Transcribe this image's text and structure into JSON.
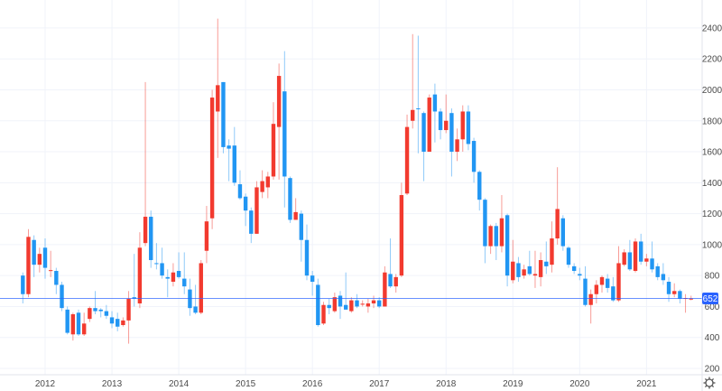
{
  "chart_data": {
    "type": "candlestick",
    "title": "",
    "xlabel": "",
    "ylabel": "",
    "interval": "monthly",
    "ylim": [
      150,
      2520
    ],
    "y_ticks": [
      200,
      400,
      600,
      800,
      1000,
      1200,
      1400,
      1600,
      1800,
      2000,
      2200,
      2400
    ],
    "x_ticks": [
      "2012",
      "2013",
      "2014",
      "2015",
      "2016",
      "2017",
      "2018",
      "2019",
      "2020",
      "2021"
    ],
    "grid": true,
    "last_price": 652,
    "colors": {
      "up": "#f23a2f",
      "down": "#2196f3",
      "last_price_line": "#2962ff",
      "grid": "#f0f3fa"
    },
    "ohlc_fields": [
      "date",
      "open",
      "high",
      "low",
      "close"
    ],
    "candles": [
      [
        "2011-09",
        800,
        820,
        620,
        680
      ],
      [
        "2011-10",
        680,
        1100,
        660,
        1050
      ],
      [
        "2011-11",
        1030,
        1060,
        790,
        870
      ],
      [
        "2011-12",
        870,
        980,
        820,
        940
      ],
      [
        "2012-01",
        980,
        1040,
        780,
        850
      ],
      [
        "2012-02",
        830,
        960,
        790,
        835
      ],
      [
        "2012-03",
        830,
        850,
        680,
        740
      ],
      [
        "2012-04",
        740,
        760,
        570,
        590
      ],
      [
        "2012-05",
        580,
        600,
        420,
        430
      ],
      [
        "2012-06",
        420,
        560,
        380,
        550
      ],
      [
        "2012-07",
        560,
        580,
        410,
        420
      ],
      [
        "2012-08",
        420,
        560,
        410,
        490
      ],
      [
        "2012-09",
        520,
        600,
        500,
        590
      ],
      [
        "2012-10",
        590,
        700,
        550,
        570
      ],
      [
        "2012-11",
        580,
        590,
        530,
        570
      ],
      [
        "2012-12",
        570,
        610,
        520,
        540
      ],
      [
        "2013-01",
        530,
        570,
        460,
        490
      ],
      [
        "2013-02",
        520,
        560,
        440,
        470
      ],
      [
        "2013-03",
        480,
        530,
        470,
        510
      ],
      [
        "2013-04",
        510,
        700,
        360,
        650
      ],
      [
        "2013-05",
        660,
        940,
        600,
        650
      ],
      [
        "2013-06",
        620,
        1080,
        590,
        980
      ],
      [
        "2013-07",
        1010,
        2050,
        990,
        1180
      ],
      [
        "2013-08",
        1180,
        1220,
        850,
        900
      ],
      [
        "2013-09",
        880,
        1010,
        840,
        875
      ],
      [
        "2013-10",
        880,
        980,
        780,
        800
      ],
      [
        "2013-11",
        790,
        840,
        660,
        780
      ],
      [
        "2013-12",
        760,
        880,
        730,
        820
      ],
      [
        "2014-01",
        830,
        950,
        780,
        790
      ],
      [
        "2014-02",
        780,
        950,
        680,
        730
      ],
      [
        "2014-03",
        710,
        780,
        540,
        590
      ],
      [
        "2014-04",
        600,
        740,
        550,
        560
      ],
      [
        "2014-05",
        560,
        900,
        550,
        880
      ],
      [
        "2014-06",
        960,
        1250,
        880,
        1150
      ],
      [
        "2014-07",
        1170,
        2000,
        1100,
        1950
      ],
      [
        "2014-08",
        1860,
        2460,
        1560,
        2030
      ],
      [
        "2014-09",
        2050,
        2050,
        1590,
        1630
      ],
      [
        "2014-10",
        1640,
        1680,
        1410,
        1620
      ],
      [
        "2014-11",
        1640,
        1760,
        1380,
        1400
      ],
      [
        "2014-12",
        1390,
        1480,
        1290,
        1300
      ],
      [
        "2015-01",
        1310,
        1330,
        1120,
        1220
      ],
      [
        "2015-02",
        1220,
        1240,
        1010,
        1070
      ],
      [
        "2015-03",
        1070,
        1410,
        1070,
        1370
      ],
      [
        "2015-04",
        1340,
        1480,
        1300,
        1410
      ],
      [
        "2015-05",
        1370,
        1470,
        1300,
        1440
      ],
      [
        "2015-06",
        1440,
        1920,
        1420,
        1780
      ],
      [
        "2015-07",
        1760,
        2170,
        1420,
        2090
      ],
      [
        "2015-08",
        1990,
        2250,
        1240,
        1440
      ],
      [
        "2015-09",
        1430,
        1440,
        1140,
        1160
      ],
      [
        "2015-10",
        1160,
        1300,
        1160,
        1210
      ],
      [
        "2015-11",
        1200,
        1220,
        890,
        1030
      ],
      [
        "2015-12",
        1030,
        1130,
        770,
        800
      ],
      [
        "2016-01",
        800,
        830,
        670,
        760
      ],
      [
        "2016-02",
        740,
        780,
        470,
        480
      ],
      [
        "2016-03",
        490,
        630,
        480,
        610
      ],
      [
        "2016-04",
        610,
        650,
        550,
        590
      ],
      [
        "2016-05",
        570,
        690,
        560,
        660
      ],
      [
        "2016-06",
        670,
        700,
        520,
        600
      ],
      [
        "2016-07",
        610,
        820,
        580,
        580
      ],
      [
        "2016-08",
        570,
        660,
        560,
        640
      ],
      [
        "2016-09",
        640,
        680,
        590,
        600
      ],
      [
        "2016-10",
        612,
        640,
        600,
        618
      ],
      [
        "2016-11",
        600,
        650,
        560,
        620
      ],
      [
        "2016-12",
        620,
        670,
        590,
        640
      ],
      [
        "2017-01",
        640,
        660,
        590,
        600
      ],
      [
        "2017-02",
        600,
        860,
        600,
        820
      ],
      [
        "2017-03",
        810,
        1040,
        720,
        730
      ],
      [
        "2017-04",
        730,
        810,
        690,
        790
      ],
      [
        "2017-05",
        800,
        1400,
        790,
        1320
      ],
      [
        "2017-06",
        1330,
        1840,
        1320,
        1760
      ],
      [
        "2017-07",
        1800,
        2360,
        1750,
        1870
      ],
      [
        "2017-08",
        1880,
        2350,
        1590,
        1875
      ],
      [
        "2017-09",
        1850,
        1860,
        1410,
        1600
      ],
      [
        "2017-10",
        1600,
        1970,
        1600,
        1950
      ],
      [
        "2017-11",
        1970,
        2040,
        1660,
        1860
      ],
      [
        "2017-12",
        1860,
        1880,
        1680,
        1740
      ],
      [
        "2018-01",
        1740,
        1970,
        1720,
        1800
      ],
      [
        "2018-02",
        1850,
        1880,
        1440,
        1600
      ],
      [
        "2018-03",
        1600,
        1750,
        1540,
        1680
      ],
      [
        "2018-04",
        1680,
        1900,
        1600,
        1860
      ],
      [
        "2018-05",
        1860,
        1900,
        1610,
        1650
      ],
      [
        "2018-06",
        1670,
        1690,
        1400,
        1470
      ],
      [
        "2018-07",
        1470,
        1480,
        1220,
        1290
      ],
      [
        "2018-08",
        1290,
        1300,
        880,
        990
      ],
      [
        "2018-09",
        990,
        1130,
        940,
        1120
      ],
      [
        "2018-10",
        1120,
        1140,
        900,
        990
      ],
      [
        "2018-11",
        990,
        1320,
        950,
        1170
      ],
      [
        "2018-12",
        1190,
        1200,
        730,
        800
      ],
      [
        "2019-01",
        770,
        1030,
        750,
        890
      ],
      [
        "2019-02",
        880,
        920,
        760,
        790
      ],
      [
        "2019-03",
        800,
        870,
        780,
        840
      ],
      [
        "2019-04",
        860,
        960,
        800,
        810
      ],
      [
        "2019-05",
        800,
        960,
        720,
        810
      ],
      [
        "2019-06",
        790,
        950,
        730,
        900
      ],
      [
        "2019-07",
        890,
        1020,
        810,
        860
      ],
      [
        "2019-08",
        870,
        1150,
        820,
        1040
      ],
      [
        "2019-09",
        1040,
        1500,
        1000,
        1230
      ],
      [
        "2019-10",
        1170,
        1190,
        960,
        990
      ],
      [
        "2019-11",
        980,
        990,
        850,
        870
      ],
      [
        "2019-12",
        860,
        880,
        810,
        830
      ],
      [
        "2020-01",
        810,
        850,
        770,
        800
      ],
      [
        "2020-02",
        780,
        860,
        600,
        610
      ],
      [
        "2020-03",
        610,
        710,
        490,
        680
      ],
      [
        "2020-04",
        680,
        770,
        620,
        740
      ],
      [
        "2020-05",
        740,
        800,
        690,
        790
      ],
      [
        "2020-06",
        780,
        810,
        690,
        720
      ],
      [
        "2020-07",
        730,
        790,
        630,
        640
      ],
      [
        "2020-08",
        640,
        990,
        630,
        880
      ],
      [
        "2020-09",
        870,
        970,
        860,
        950
      ],
      [
        "2020-10",
        950,
        1030,
        830,
        840
      ],
      [
        "2020-11",
        830,
        1040,
        820,
        1020
      ],
      [
        "2020-12",
        1020,
        1070,
        870,
        890
      ],
      [
        "2021-01",
        890,
        940,
        860,
        910
      ],
      [
        "2021-02",
        910,
        1020,
        820,
        840
      ],
      [
        "2021-03",
        860,
        880,
        770,
        790
      ],
      [
        "2021-04",
        810,
        880,
        740,
        770
      ],
      [
        "2021-05",
        760,
        790,
        630,
        680
      ],
      [
        "2021-06",
        680,
        750,
        660,
        700
      ],
      [
        "2021-07",
        700,
        710,
        620,
        650
      ],
      [
        "2021-08",
        650,
        680,
        560,
        655
      ],
      [
        "2021-09",
        645,
        670,
        640,
        652
      ]
    ]
  },
  "toolbar": {
    "settings_icon": "gear-icon"
  }
}
